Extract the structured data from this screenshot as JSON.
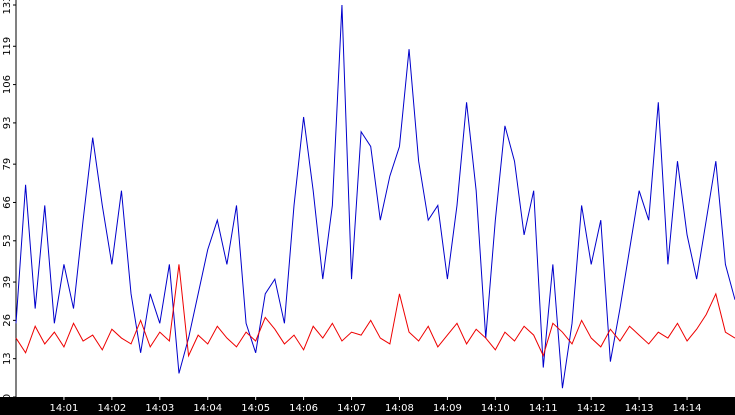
{
  "chart_data": {
    "type": "line",
    "x": [
      0,
      0.2,
      0.4,
      0.6,
      0.8,
      1,
      1.2,
      1.4,
      1.6,
      1.8,
      2,
      2.2,
      2.4,
      2.6,
      2.8,
      3,
      3.2,
      3.4,
      3.6,
      3.8,
      4,
      4.2,
      4.4,
      4.6,
      4.8,
      5,
      5.2,
      5.4,
      5.6,
      5.8,
      6,
      6.2,
      6.4,
      6.6,
      6.8,
      7,
      7.2,
      7.4,
      7.6,
      7.8,
      8,
      8.2,
      8.4,
      8.6,
      8.8,
      9,
      9.2,
      9.4,
      9.6,
      9.8,
      10,
      10.2,
      10.4,
      10.6,
      10.8,
      11,
      11.2,
      11.4,
      11.6,
      11.8,
      12,
      12.2,
      12.4,
      12.6,
      12.8,
      13,
      13.2,
      13.4,
      13.6,
      13.8,
      14,
      14.2,
      14.4,
      14.6,
      14.8,
      15
    ],
    "series": [
      {
        "color": "#0000cc",
        "values": [
          25,
          72,
          30,
          65,
          25,
          45,
          30,
          60,
          88,
          65,
          45,
          70,
          35,
          15,
          35,
          25,
          45,
          8,
          20,
          35,
          50,
          60,
          45,
          65,
          25,
          15,
          35,
          40,
          25,
          65,
          95,
          70,
          40,
          65,
          133,
          40,
          90,
          85,
          60,
          75,
          85,
          118,
          80,
          60,
          65,
          40,
          65,
          100,
          70,
          20,
          60,
          92,
          80,
          55,
          70,
          10,
          45,
          3,
          25,
          65,
          45,
          60,
          12,
          30,
          50,
          70,
          60,
          100,
          45,
          80,
          55,
          40,
          60,
          80,
          45,
          33
        ]
      },
      {
        "color": "#ee0000",
        "values": [
          20,
          15,
          24,
          18,
          22,
          17,
          25,
          19,
          21,
          16,
          23,
          20,
          18,
          26,
          17,
          22,
          19,
          45,
          14,
          21,
          18,
          24,
          20,
          17,
          22,
          19,
          27,
          23,
          18,
          21,
          16,
          24,
          20,
          25,
          19,
          22,
          21,
          26,
          20,
          18,
          35,
          22,
          19,
          24,
          17,
          21,
          25,
          18,
          23,
          20,
          16,
          22,
          19,
          24,
          21,
          14,
          25,
          22,
          18,
          26,
          20,
          17,
          23,
          19,
          24,
          21,
          18,
          22,
          20,
          25,
          19,
          23,
          28,
          35,
          22,
          20
        ]
      }
    ],
    "xlim": [
      0,
      15
    ],
    "xticks": [
      {
        "value": 1,
        "label": "14:01"
      },
      {
        "value": 2,
        "label": "14:02"
      },
      {
        "value": 3,
        "label": "14:03"
      },
      {
        "value": 4,
        "label": "14:04"
      },
      {
        "value": 5,
        "label": "14:05"
      },
      {
        "value": 6,
        "label": "14:06"
      },
      {
        "value": 7,
        "label": "14:07"
      },
      {
        "value": 8,
        "label": "14:08"
      },
      {
        "value": 9,
        "label": "14:09"
      },
      {
        "value": 10,
        "label": "14:10"
      },
      {
        "value": 11,
        "label": "14:11"
      },
      {
        "value": 12,
        "label": "14:12"
      },
      {
        "value": 13,
        "label": "14:13"
      },
      {
        "value": 14,
        "label": "14:14"
      }
    ],
    "ylim": [
      0,
      133
    ],
    "yticks": [
      0,
      13,
      26,
      39,
      53,
      66,
      79,
      93,
      106,
      119,
      133
    ]
  }
}
